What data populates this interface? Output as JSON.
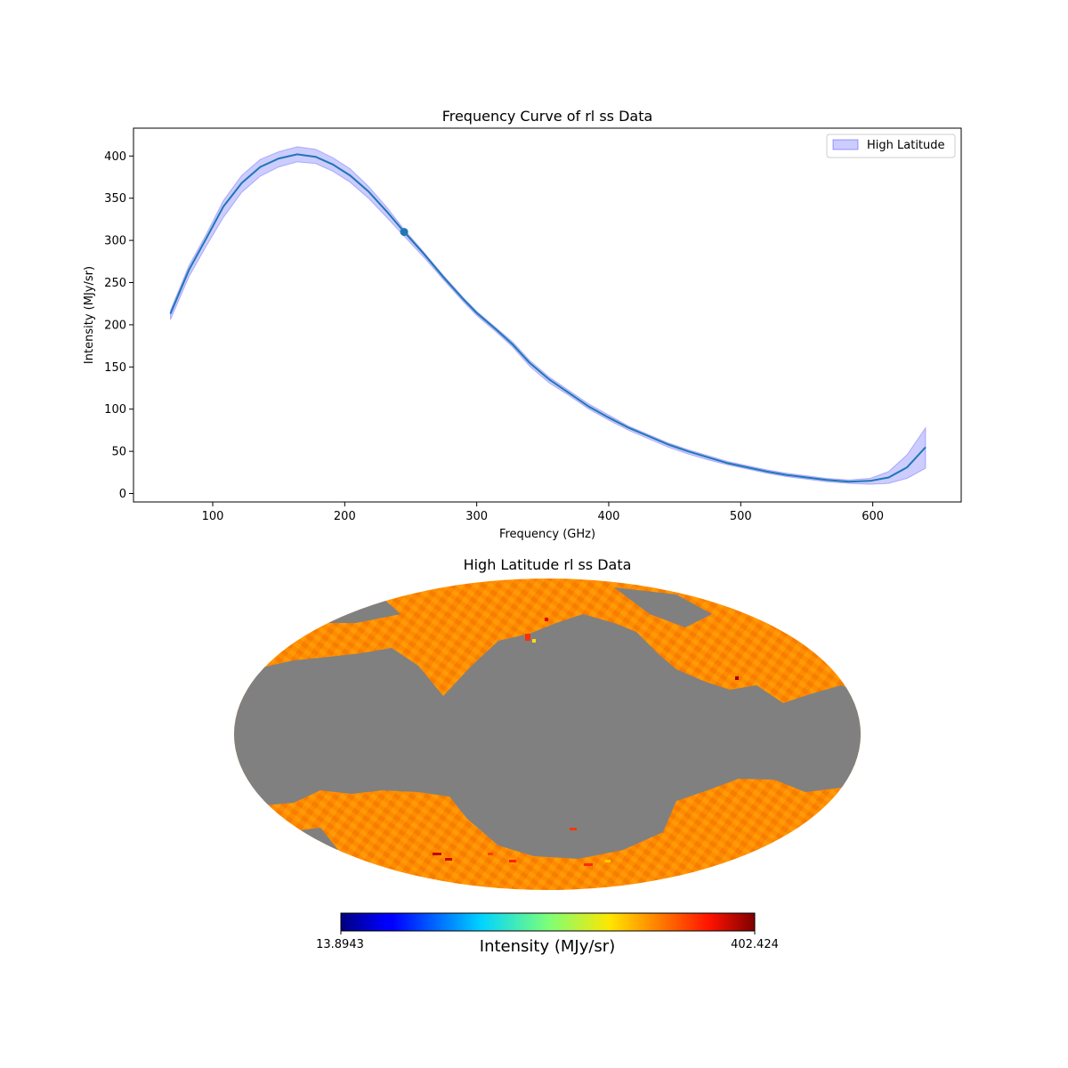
{
  "chart_data": [
    {
      "type": "line",
      "title": "Frequency Curve of rl ss Data",
      "xlabel": "Frequency (GHz)",
      "ylabel": "Intensity (MJy/sr)",
      "xlim": [
        40,
        667
      ],
      "ylim": [
        -10,
        433
      ],
      "xticks": [
        100,
        200,
        300,
        400,
        500,
        600
      ],
      "yticks": [
        0,
        50,
        100,
        150,
        200,
        250,
        300,
        350,
        400
      ],
      "legend": {
        "label": "High Latitude",
        "position": "top-right"
      },
      "line_color": "#1f77b4",
      "band_color": "#0000ff",
      "series": [
        {
          "name": "mean",
          "x": [
            68,
            82,
            95,
            108,
            122,
            136,
            150,
            164,
            178,
            191,
            204,
            218,
            232,
            245,
            260,
            275,
            290,
            300,
            315,
            327,
            340,
            355,
            370,
            385,
            400,
            415,
            430,
            445,
            460,
            475,
            490,
            505,
            520,
            535,
            550,
            565,
            582,
            598,
            612,
            626,
            640
          ],
          "y": [
            213,
            265,
            302,
            340,
            368,
            387,
            397,
            402,
            399,
            390,
            377,
            358,
            334,
            310,
            284,
            256,
            230,
            214,
            194,
            177,
            155,
            135,
            119,
            103,
            90,
            78,
            68,
            58,
            50,
            43,
            36,
            31,
            26,
            22,
            19,
            16,
            14,
            15,
            19,
            31,
            55
          ],
          "upper": [
            217,
            270,
            307,
            347,
            377,
            396,
            405,
            411,
            408,
            398,
            385,
            364,
            339,
            313,
            286,
            258,
            232,
            216,
            196,
            180,
            158,
            138,
            122,
            106,
            93,
            80,
            70,
            60,
            52,
            45,
            38,
            33,
            28,
            24,
            21,
            18,
            16,
            18,
            26,
            46,
            78
          ],
          "lower": [
            206,
            257,
            293,
            327,
            357,
            376,
            387,
            393,
            391,
            382,
            369,
            350,
            327,
            305,
            280,
            253,
            227,
            211,
            191,
            174,
            151,
            131,
            116,
            100,
            87,
            75,
            65,
            55,
            47,
            40,
            34,
            29,
            24,
            20,
            17,
            14,
            12,
            11,
            12,
            18,
            30
          ]
        }
      ],
      "marker": {
        "x": 245,
        "y": 310
      }
    },
    {
      "type": "heatmap",
      "title": "High Latitude rl ss Data",
      "projection": "mollweide",
      "masked_color": "#808080",
      "colorbar": {
        "label": "Intensity (MJy/sr)",
        "min_label": "13.8943",
        "max_label": "402.424",
        "colormap": "jet"
      }
    }
  ]
}
